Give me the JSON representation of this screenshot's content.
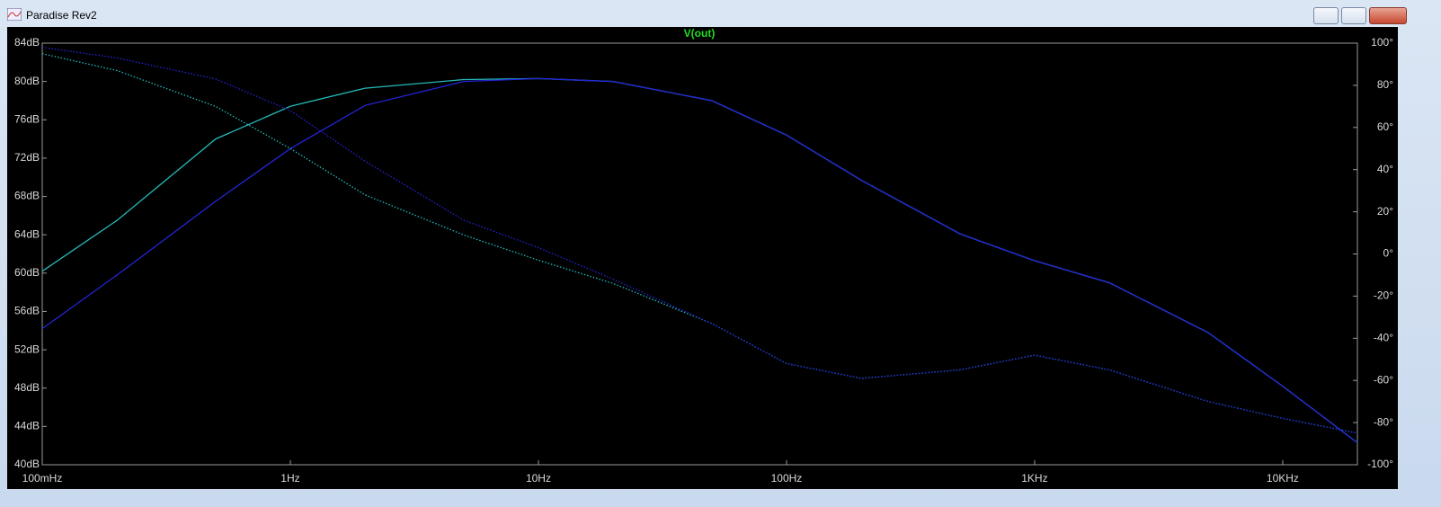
{
  "window": {
    "title": "Paradise Rev2"
  },
  "chart_data": {
    "type": "line",
    "title": "V(out)",
    "xscale": "log",
    "x": [
      0.1,
      0.2,
      0.5,
      1,
      2,
      5,
      10,
      20,
      50,
      100,
      200,
      500,
      1000,
      2000,
      5000,
      10000,
      20000
    ],
    "xlim": [
      0.1,
      20000
    ],
    "xticks": [
      {
        "value": 0.1,
        "label": "100mHz"
      },
      {
        "value": 1,
        "label": "1Hz"
      },
      {
        "value": 10,
        "label": "10Hz"
      },
      {
        "value": 100,
        "label": "100Hz"
      },
      {
        "value": 1000,
        "label": "1KHz"
      },
      {
        "value": 10000,
        "label": "10KHz"
      }
    ],
    "ylim": [
      40,
      84
    ],
    "yticks": [
      {
        "value": 40,
        "label": "40dB"
      },
      {
        "value": 44,
        "label": "44dB"
      },
      {
        "value": 48,
        "label": "48dB"
      },
      {
        "value": 52,
        "label": "52dB"
      },
      {
        "value": 56,
        "label": "56dB"
      },
      {
        "value": 60,
        "label": "60dB"
      },
      {
        "value": 64,
        "label": "64dB"
      },
      {
        "value": 68,
        "label": "68dB"
      },
      {
        "value": 72,
        "label": "72dB"
      },
      {
        "value": 76,
        "label": "76dB"
      },
      {
        "value": 80,
        "label": "80dB"
      },
      {
        "value": 84,
        "label": "84dB"
      }
    ],
    "y2lim": [
      -100,
      100
    ],
    "y2ticks": [
      {
        "value": -100,
        "label": "-100°"
      },
      {
        "value": -80,
        "label": "-80°"
      },
      {
        "value": -60,
        "label": "-60°"
      },
      {
        "value": -40,
        "label": "-40°"
      },
      {
        "value": -20,
        "label": "-20°"
      },
      {
        "value": 0,
        "label": "0°"
      },
      {
        "value": 20,
        "label": "20°"
      },
      {
        "value": 40,
        "label": "40°"
      },
      {
        "value": 60,
        "label": "60°"
      },
      {
        "value": 80,
        "label": "80°"
      },
      {
        "value": 100,
        "label": "100°"
      }
    ],
    "grid": false,
    "series": [
      {
        "color": "#25b8b8",
        "style": "solid",
        "values": [
          60.2,
          65.5,
          74.0,
          77.4,
          79.3,
          80.2,
          80.3,
          80.0,
          78.0,
          74.4,
          69.7,
          64.1,
          61.3,
          59.0,
          53.8,
          48.2,
          42.3
        ]
      },
      {
        "color": "#2424d8",
        "style": "solid",
        "values": [
          54.2,
          59.8,
          67.5,
          73.0,
          77.5,
          80.0,
          80.3,
          80.0,
          78.0,
          74.4,
          69.7,
          64.1,
          61.3,
          59.0,
          53.8,
          48.2,
          42.3
        ]
      },
      {
        "color": "#25b8b8",
        "style": "dotted",
        "axis": "y2",
        "values": [
          95,
          87,
          70,
          50,
          28,
          9,
          -3,
          -14,
          -33,
          -52,
          -59,
          -55,
          -48,
          -55,
          -70,
          -78,
          -85
        ]
      },
      {
        "color": "#2424d8",
        "style": "dotted",
        "axis": "y2",
        "values": [
          98,
          93,
          83,
          68,
          44,
          16,
          3,
          -12,
          -33,
          -52,
          -59,
          -55,
          -48,
          -55,
          -70,
          -78,
          -85
        ]
      }
    ]
  }
}
